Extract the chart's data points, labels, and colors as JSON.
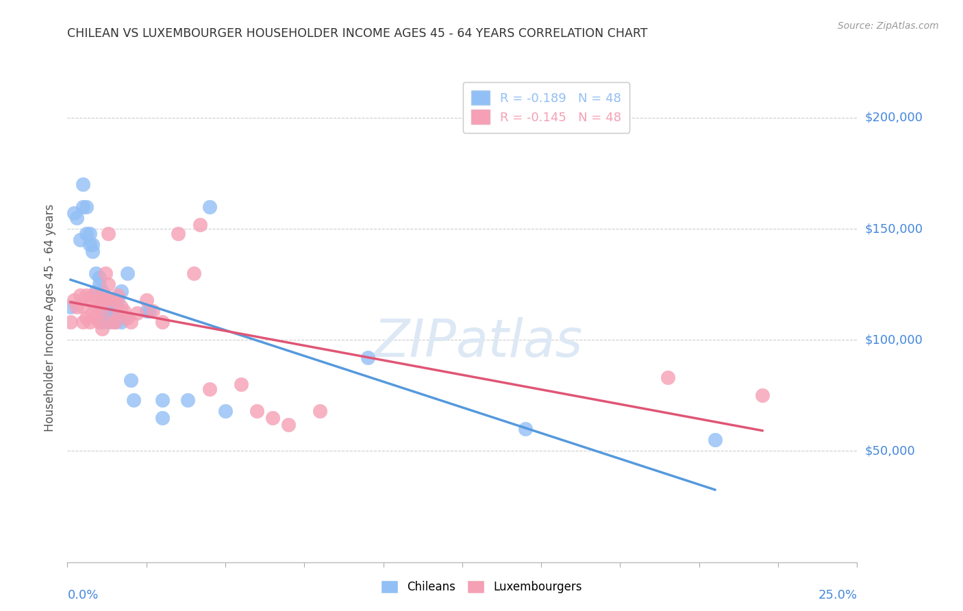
{
  "title": "CHILEAN VS LUXEMBOURGER HOUSEHOLDER INCOME AGES 45 - 64 YEARS CORRELATION CHART",
  "source": "Source: ZipAtlas.com",
  "ylabel": "Householder Income Ages 45 - 64 years",
  "xlim": [
    0.0,
    0.25
  ],
  "ylim": [
    0,
    220000
  ],
  "yticks": [
    0,
    50000,
    100000,
    150000,
    200000
  ],
  "ytick_labels": [
    "",
    "$50,000",
    "$100,000",
    "$150,000",
    "$200,000"
  ],
  "legend_r_chilean": "R = -0.189",
  "legend_n_chilean": "N = 48",
  "legend_r_lux": "R = -0.145",
  "legend_n_lux": "N = 48",
  "legend_title_chileans": "Chileans",
  "legend_title_luxembourgers": "Luxembourgers",
  "chilean_color": "#92BFF5",
  "luxembourger_color": "#F5A0B5",
  "trend_chilean_color": "#5599DD",
  "trend_luxembourger_color": "#E05575",
  "watermark": "ZIPatlas",
  "chilean_points": [
    [
      0.001,
      115000
    ],
    [
      0.002,
      157000
    ],
    [
      0.003,
      155000
    ],
    [
      0.004,
      145000
    ],
    [
      0.005,
      160000
    ],
    [
      0.005,
      170000
    ],
    [
      0.006,
      148000
    ],
    [
      0.006,
      160000
    ],
    [
      0.007,
      143000
    ],
    [
      0.007,
      148000
    ],
    [
      0.008,
      140000
    ],
    [
      0.008,
      143000
    ],
    [
      0.009,
      130000
    ],
    [
      0.009,
      122000
    ],
    [
      0.01,
      128000
    ],
    [
      0.01,
      118000
    ],
    [
      0.01,
      125000
    ],
    [
      0.011,
      122000
    ],
    [
      0.011,
      115000
    ],
    [
      0.011,
      108000
    ],
    [
      0.012,
      118000
    ],
    [
      0.012,
      115000
    ],
    [
      0.012,
      110000
    ],
    [
      0.013,
      118000
    ],
    [
      0.013,
      112000
    ],
    [
      0.013,
      108000
    ],
    [
      0.014,
      115000
    ],
    [
      0.014,
      110000
    ],
    [
      0.015,
      115000
    ],
    [
      0.015,
      108000
    ],
    [
      0.016,
      113000
    ],
    [
      0.016,
      118000
    ],
    [
      0.017,
      108000
    ],
    [
      0.017,
      122000
    ],
    [
      0.018,
      110000
    ],
    [
      0.019,
      130000
    ],
    [
      0.02,
      82000
    ],
    [
      0.021,
      73000
    ],
    [
      0.025,
      113000
    ],
    [
      0.026,
      113000
    ],
    [
      0.03,
      73000
    ],
    [
      0.03,
      65000
    ],
    [
      0.038,
      73000
    ],
    [
      0.045,
      160000
    ],
    [
      0.05,
      68000
    ],
    [
      0.095,
      92000
    ],
    [
      0.145,
      60000
    ],
    [
      0.205,
      55000
    ]
  ],
  "luxembourger_points": [
    [
      0.001,
      108000
    ],
    [
      0.002,
      118000
    ],
    [
      0.003,
      115000
    ],
    [
      0.004,
      120000
    ],
    [
      0.005,
      115000
    ],
    [
      0.005,
      108000
    ],
    [
      0.006,
      120000
    ],
    [
      0.006,
      110000
    ],
    [
      0.007,
      118000
    ],
    [
      0.007,
      108000
    ],
    [
      0.008,
      120000
    ],
    [
      0.008,
      112000
    ],
    [
      0.009,
      115000
    ],
    [
      0.009,
      110000
    ],
    [
      0.01,
      118000
    ],
    [
      0.01,
      108000
    ],
    [
      0.011,
      120000
    ],
    [
      0.011,
      113000
    ],
    [
      0.011,
      105000
    ],
    [
      0.012,
      118000
    ],
    [
      0.012,
      130000
    ],
    [
      0.013,
      148000
    ],
    [
      0.013,
      125000
    ],
    [
      0.014,
      118000
    ],
    [
      0.014,
      108000
    ],
    [
      0.015,
      118000
    ],
    [
      0.015,
      108000
    ],
    [
      0.016,
      120000
    ],
    [
      0.016,
      112000
    ],
    [
      0.017,
      115000
    ],
    [
      0.018,
      113000
    ],
    [
      0.019,
      110000
    ],
    [
      0.02,
      108000
    ],
    [
      0.022,
      112000
    ],
    [
      0.025,
      118000
    ],
    [
      0.027,
      113000
    ],
    [
      0.03,
      108000
    ],
    [
      0.035,
      148000
    ],
    [
      0.04,
      130000
    ],
    [
      0.042,
      152000
    ],
    [
      0.045,
      78000
    ],
    [
      0.055,
      80000
    ],
    [
      0.06,
      68000
    ],
    [
      0.065,
      65000
    ],
    [
      0.07,
      62000
    ],
    [
      0.08,
      68000
    ],
    [
      0.19,
      83000
    ],
    [
      0.22,
      75000
    ]
  ]
}
